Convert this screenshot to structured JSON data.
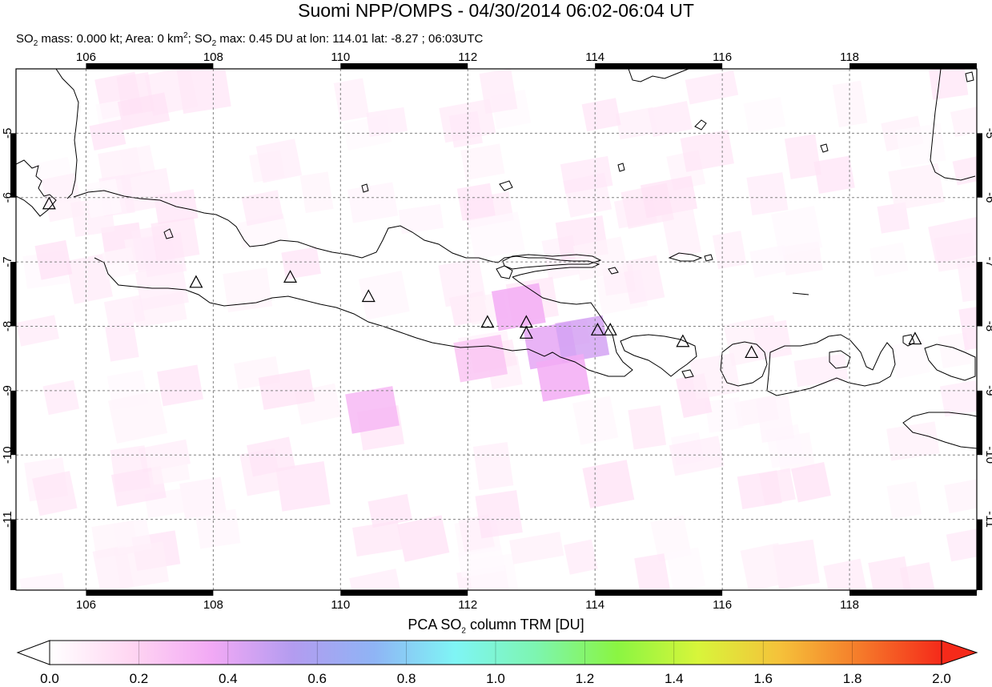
{
  "title": "Suomi NPP/OMPS - 04/30/2014 06:02-06:04 UT",
  "subtitle": {
    "mass_label": "SO",
    "mass_text": " mass: 0.000 kt; Area: 0 km",
    "area_sup": "2",
    "max_label": "; SO",
    "max_text": " max: 0.45 DU at lon: 114.01 lat: -8.27 ; 06:03UTC",
    "sub2": "2"
  },
  "map": {
    "lon_range": [
      104.9,
      120.0
    ],
    "lat_range": [
      -12.1,
      -4.0
    ],
    "lon_ticks": [
      "106",
      "108",
      "110",
      "112",
      "114",
      "116",
      "118"
    ],
    "lat_ticks": [
      "-5",
      "-6",
      "-7",
      "-8",
      "-9",
      "-10",
      "-11"
    ],
    "grid": true,
    "volcanoes": [
      {
        "name": "v1",
        "lon": 105.42,
        "lat": -6.1
      },
      {
        "name": "v2",
        "lon": 107.73,
        "lat": -7.32
      },
      {
        "name": "v3",
        "lon": 109.21,
        "lat": -7.24
      },
      {
        "name": "v4",
        "lon": 110.44,
        "lat": -7.54
      },
      {
        "name": "v5",
        "lon": 112.31,
        "lat": -7.94
      },
      {
        "name": "v6",
        "lon": 112.92,
        "lat": -7.94
      },
      {
        "name": "v7",
        "lon": 112.92,
        "lat": -8.11
      },
      {
        "name": "v8",
        "lon": 114.04,
        "lat": -8.06
      },
      {
        "name": "v9",
        "lon": 114.24,
        "lat": -8.06
      },
      {
        "name": "v10",
        "lon": 115.38,
        "lat": -8.24
      },
      {
        "name": "v11",
        "lon": 116.46,
        "lat": -8.41
      },
      {
        "name": "v12",
        "lon": 119.03,
        "lat": -8.2
      }
    ],
    "so2_pixels": [
      {
        "lon": 112.8,
        "lat": -7.7,
        "du": 0.35
      },
      {
        "lon": 113.3,
        "lat": -8.3,
        "du": 0.4
      },
      {
        "lon": 113.8,
        "lat": -8.2,
        "du": 0.45
      },
      {
        "lon": 113.5,
        "lat": -8.8,
        "du": 0.35
      },
      {
        "lon": 110.5,
        "lat": -9.3,
        "du": 0.3
      },
      {
        "lon": 112.2,
        "lat": -8.5,
        "du": 0.25
      }
    ]
  },
  "colorbar": {
    "label_prefix": "PCA SO",
    "label_sub": "2",
    "label_suffix": " column TRM [DU]",
    "ticks": [
      "0.0",
      "0.2",
      "0.4",
      "0.6",
      "0.8",
      "1.0",
      "1.2",
      "1.4",
      "1.6",
      "1.8",
      "2.0"
    ],
    "range": [
      0.0,
      2.0
    ],
    "colors": [
      "#ffffff",
      "#ffd6f2",
      "#f2a9f5",
      "#b39cf0",
      "#8fb4f5",
      "#7ff5f5",
      "#7df5b0",
      "#8af542",
      "#d8f53a",
      "#f5c23a",
      "#f57a2a",
      "#f52a1a"
    ]
  }
}
